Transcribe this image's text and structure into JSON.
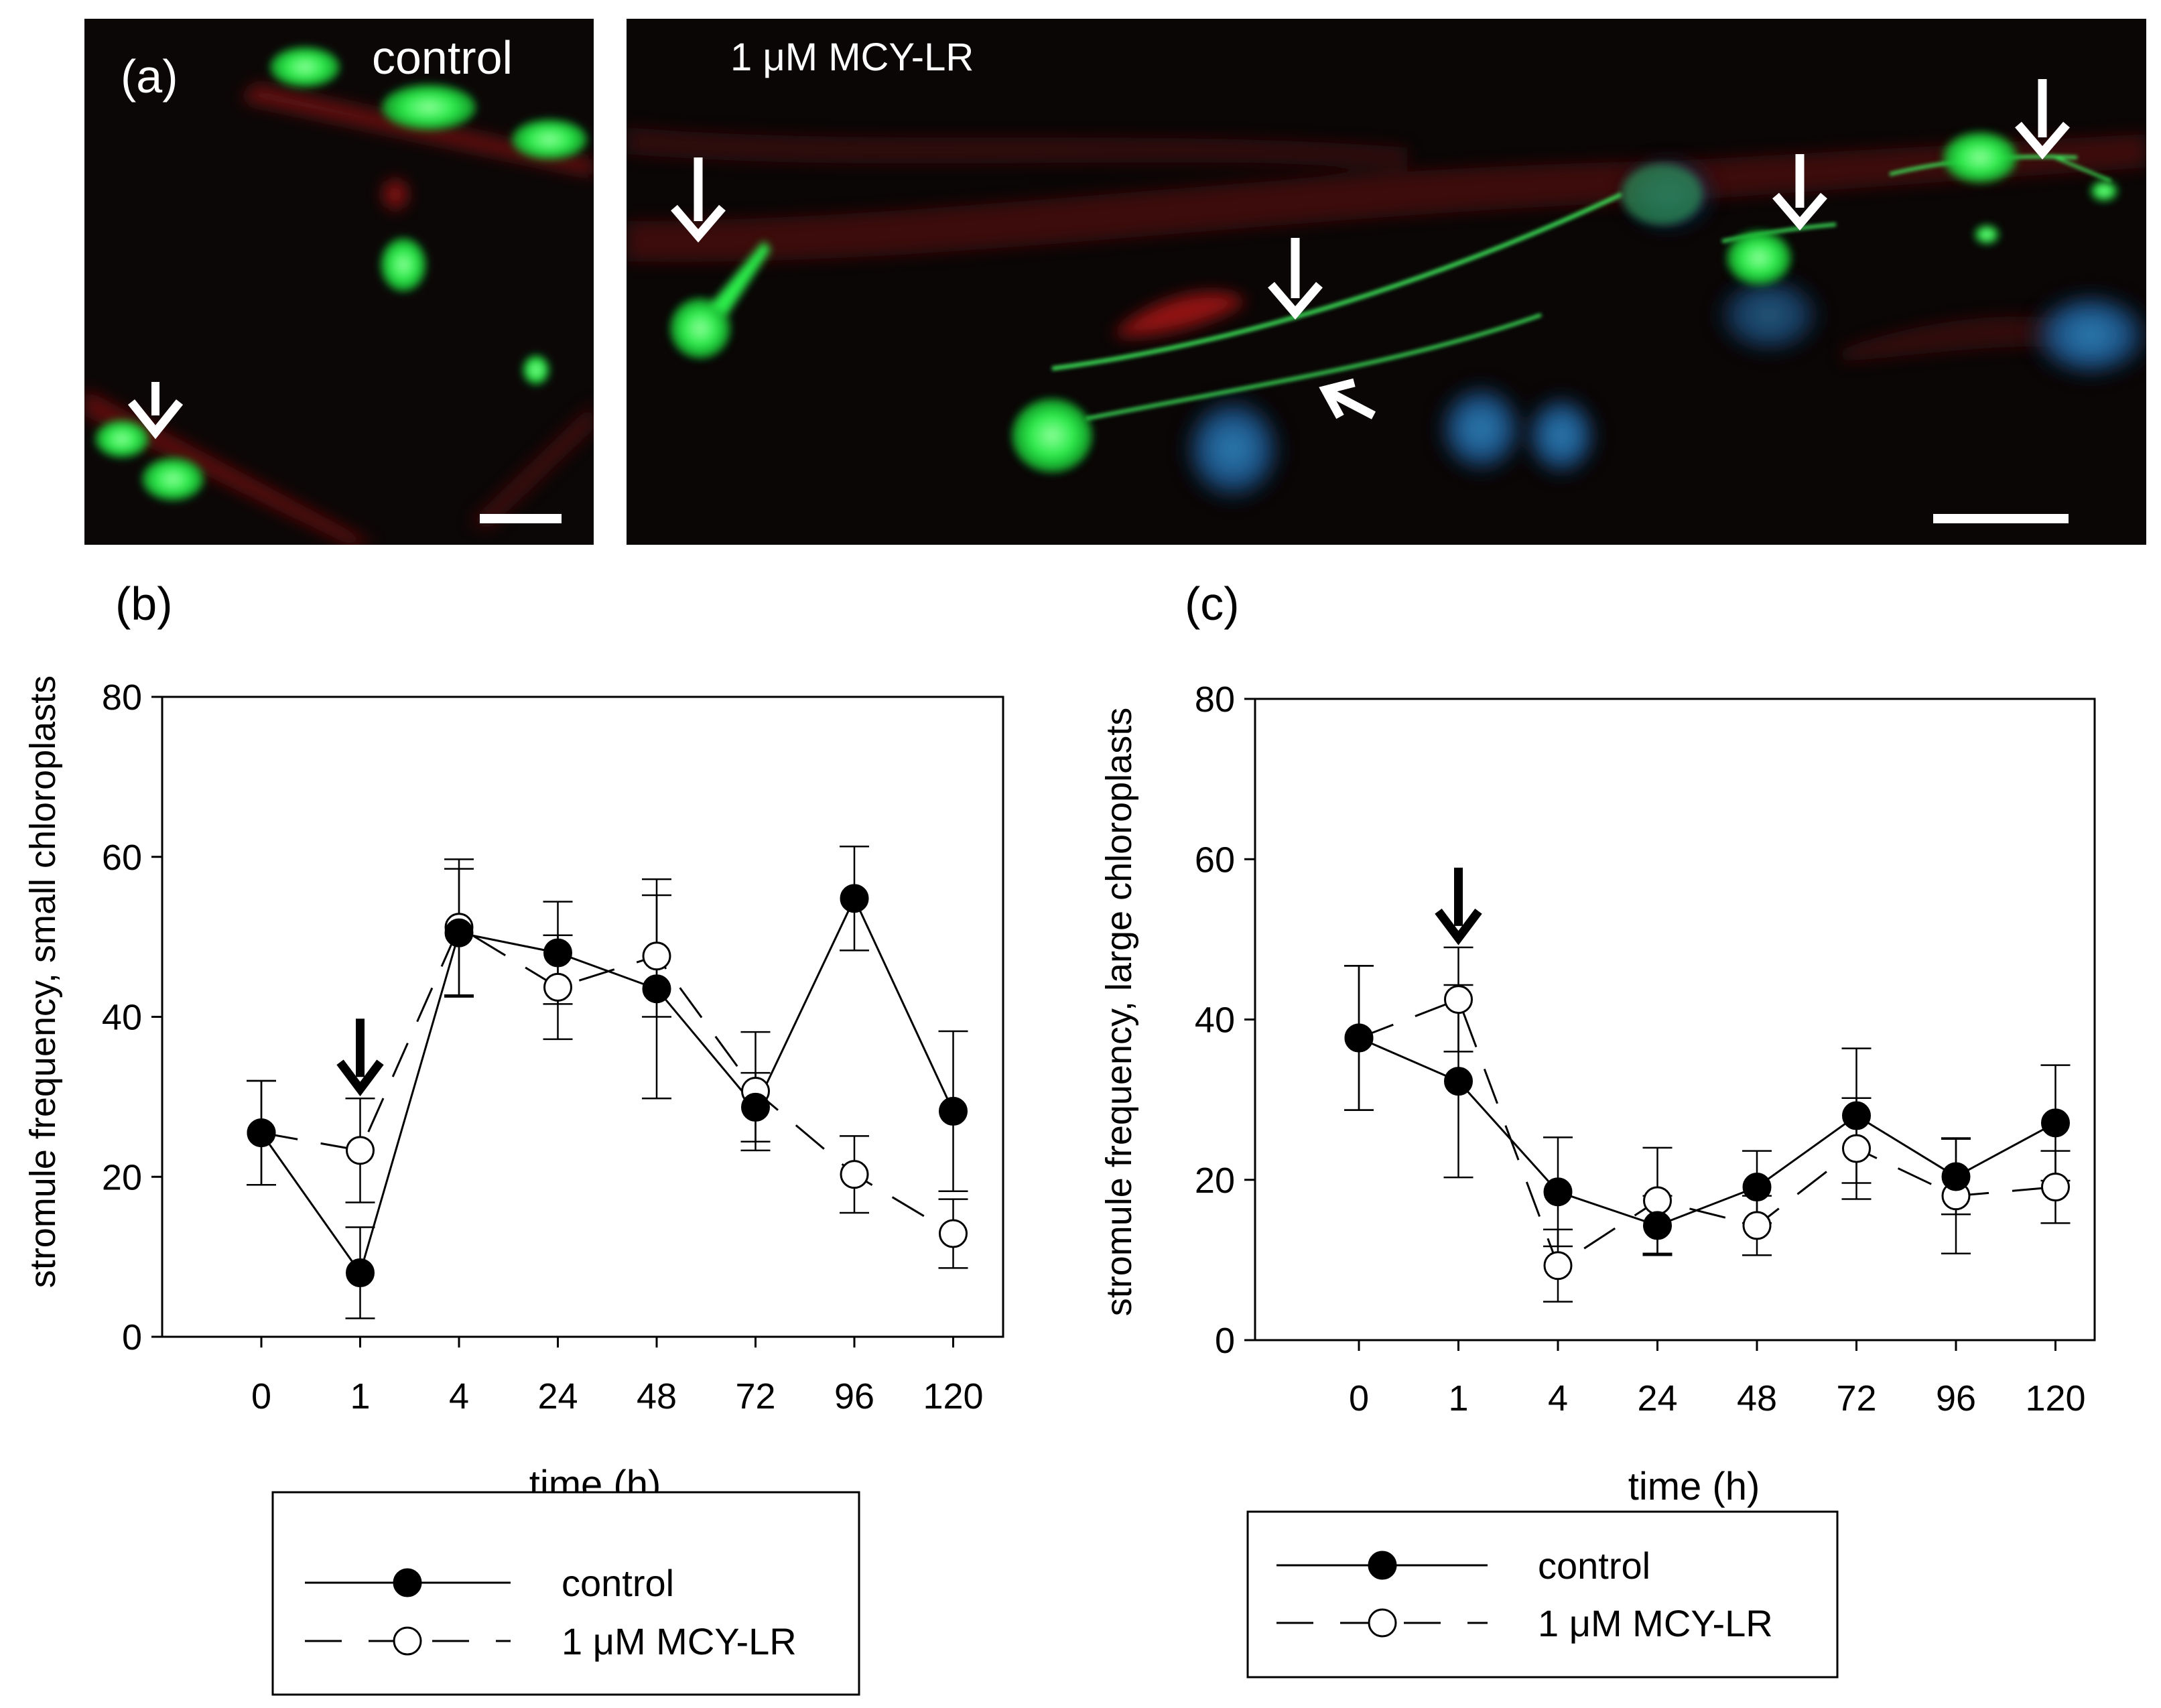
{
  "micrographs": [
    {
      "panel_label": "(a)",
      "caption": "control"
    },
    {
      "panel_label": "",
      "caption": "1 μM MCY-LR"
    }
  ],
  "chart_data": [
    {
      "panel_label": "(b)",
      "type": "line",
      "title": "",
      "xlabel": "time (h)",
      "ylabel": "stromule frequency, small chloroplasts",
      "categories": [
        "0",
        "1",
        "4",
        "24",
        "48",
        "72",
        "96",
        "120"
      ],
      "ylim": [
        0,
        80
      ],
      "yticks": [
        "0",
        "20",
        "40",
        "60",
        "80"
      ],
      "grid": false,
      "legend_position": "bottom",
      "treatment_arrow_at": "1",
      "series": [
        {
          "name": "control",
          "marker": "filled-circle",
          "line": "solid",
          "values": [
            25.5,
            8,
            50.5,
            48,
            43.5,
            28.7,
            54.8,
            28.2
          ],
          "errors": [
            6.5,
            5.7,
            8,
            6.4,
            13.7,
            4.3,
            6.5,
            10
          ]
        },
        {
          "name": "1 μM MCY-LR",
          "marker": "open-circle",
          "line": "dashed",
          "values": [
            25.5,
            23.3,
            51.2,
            43.7,
            47.6,
            30.7,
            20.3,
            12.9
          ],
          "errors": [
            6.5,
            6.5,
            8.5,
            6.5,
            7.6,
            7.4,
            4.8,
            4.3
          ]
        }
      ]
    },
    {
      "panel_label": "(c)",
      "type": "line",
      "title": "",
      "xlabel": "time (h)",
      "ylabel": "stromule frequency, large chloroplasts",
      "categories": [
        "0",
        "1",
        "4",
        "24",
        "48",
        "72",
        "96",
        "120"
      ],
      "ylim": [
        0,
        80
      ],
      "yticks": [
        "0",
        "20",
        "40",
        "60",
        "80"
      ],
      "grid": false,
      "legend_position": "bottom",
      "treatment_arrow_at": "1",
      "series": [
        {
          "name": "control",
          "marker": "filled-circle",
          "line": "solid",
          "values": [
            37.7,
            32.3,
            18.5,
            14.3,
            19.1,
            28,
            20.4,
            27.1
          ],
          "errors": [
            9,
            12,
            6.8,
            3.7,
            4.5,
            8.4,
            4.7,
            7.2
          ]
        },
        {
          "name": "1 μM MCY-LR",
          "marker": "open-circle",
          "line": "dashed",
          "values": [
            37.7,
            42.5,
            9.3,
            17.4,
            14.3,
            23.9,
            18,
            19.1
          ],
          "errors": [
            9,
            6.5,
            4.5,
            6.6,
            3.7,
            6.3,
            7.2,
            4.5
          ]
        }
      ]
    }
  ]
}
